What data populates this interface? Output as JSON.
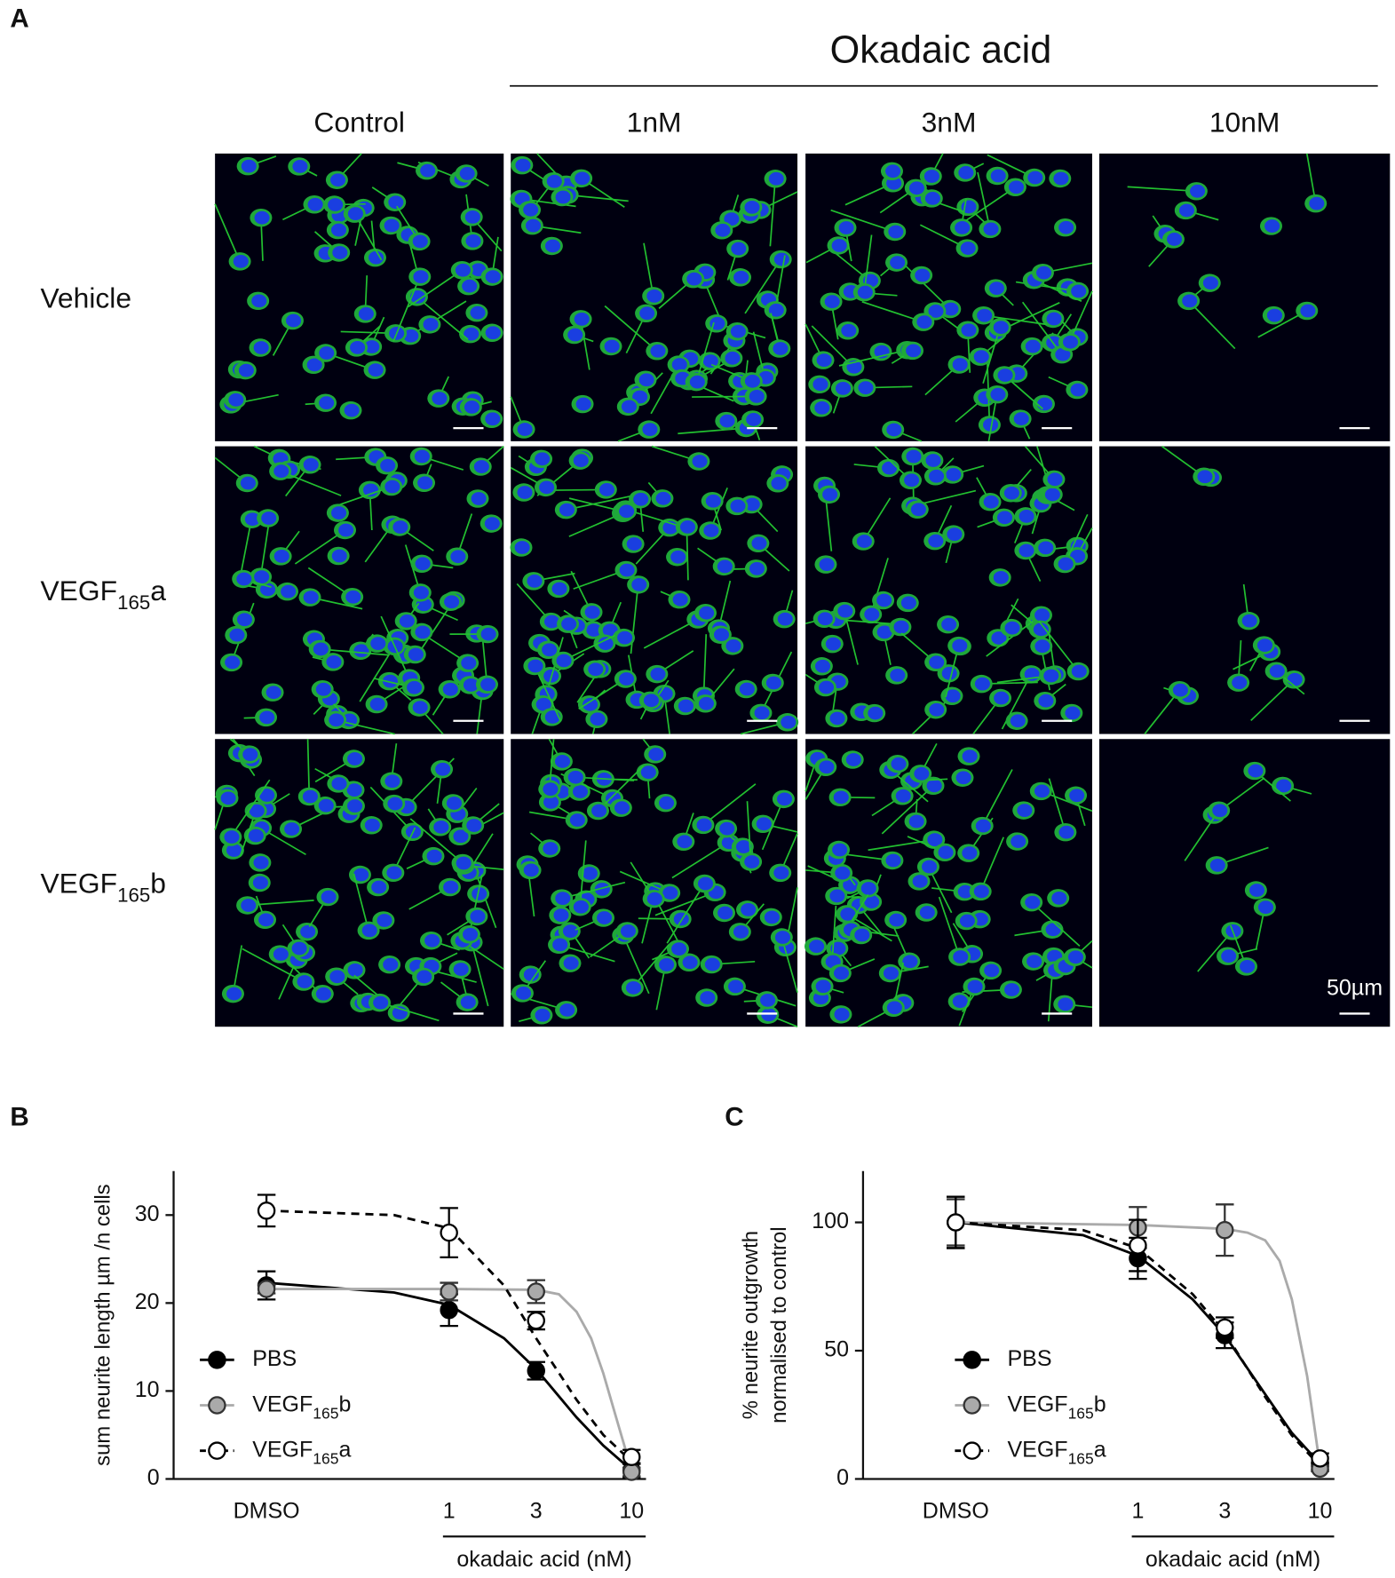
{
  "panel_a": {
    "letter": "A",
    "group_label": "Okadaic acid",
    "columns": [
      "Control",
      "1nM",
      "3nM",
      "10nM"
    ],
    "rows": [
      "Vehicle",
      "VEGF165a",
      "VEGF165b"
    ],
    "scale_label": "50µm"
  },
  "chart_data": [
    {
      "type": "line",
      "letter": "B",
      "y_label": "sum neurite length µm /n cells",
      "x_group_label": "okadaic acid (nM)",
      "x_scale": "log",
      "xlim": [
        0.031,
        12
      ],
      "xticks": [
        {
          "value": 0.1,
          "label": "DMSO"
        },
        1,
        3,
        10
      ],
      "ylim": [
        0,
        35
      ],
      "yticks": [
        0,
        10,
        20,
        30
      ],
      "legend": "lower left",
      "series": [
        {
          "name": "PBS",
          "color": "#000000",
          "marker_fill": "#000000",
          "dashed": false,
          "x": [
            0.1,
            1,
            3,
            10
          ],
          "values": [
            22,
            19.2,
            12.3,
            1.0
          ],
          "errors": [
            1.6,
            1.8,
            1.0,
            0.8
          ],
          "fit": {
            "x": [
              0.1,
              0.5,
              1,
              2,
              3,
              5,
              7,
              10
            ],
            "y": [
              22.3,
              21.2,
              19.8,
              16,
              12.5,
              7,
              3.8,
              1
            ]
          }
        },
        {
          "name": "VEGF165b",
          "color": "#aaaaaa",
          "marker_fill": "#aaaaaa",
          "dashed": false,
          "x": [
            0.1,
            1,
            3,
            10
          ],
          "values": [
            21.6,
            21.3,
            21.3,
            0.8
          ],
          "errors": [
            0.5,
            1.0,
            1.3,
            0.5
          ],
          "fit": {
            "x": [
              0.1,
              1,
              3,
              4,
              5,
              6,
              7,
              8.5,
              10
            ],
            "y": [
              21.6,
              21.6,
              21.5,
              21,
              19,
              16,
              12,
              6,
              1
            ]
          }
        },
        {
          "name": "VEGF165a",
          "color": "#000000",
          "marker_fill": "#ffffff",
          "dashed": true,
          "x": [
            0.1,
            1,
            3,
            10
          ],
          "values": [
            30.5,
            28,
            18,
            2.5
          ],
          "errors": [
            1.8,
            2.8,
            1.0,
            0.8
          ],
          "fit": {
            "x": [
              0.1,
              0.5,
              1,
              2,
              3,
              5,
              7,
              10
            ],
            "y": [
              30.5,
              30,
              28.5,
              22,
              16,
              9,
              5,
              2
            ]
          }
        }
      ]
    },
    {
      "type": "line",
      "letter": "C",
      "y_label": [
        "% neurite outgrowth",
        "normalised to control"
      ],
      "x_group_label": "okadaic acid (nM)",
      "x_scale": "log",
      "xlim": [
        0.031,
        12
      ],
      "xticks": [
        {
          "value": 0.1,
          "label": "DMSO"
        },
        1,
        3,
        10
      ],
      "ylim": [
        0,
        120
      ],
      "yticks": [
        0,
        50,
        100
      ],
      "legend": "lower left",
      "series": [
        {
          "name": "PBS",
          "color": "#000000",
          "marker_fill": "#000000",
          "dashed": false,
          "x": [
            0.1,
            1,
            3,
            10
          ],
          "values": [
            100,
            86,
            56,
            5
          ],
          "errors": [
            10,
            8,
            5,
            1.5
          ],
          "fit": {
            "x": [
              0.1,
              0.5,
              1,
              2,
              3,
              5,
              7,
              10
            ],
            "y": [
              100,
              95,
              87,
              70,
              56,
              33,
              18,
              6
            ]
          }
        },
        {
          "name": "VEGF165b",
          "color": "#aaaaaa",
          "marker_fill": "#aaaaaa",
          "dashed": false,
          "x": [
            0.1,
            1,
            3,
            10
          ],
          "values": [
            100,
            98,
            97,
            4
          ],
          "errors": [
            9,
            8,
            10,
            1
          ],
          "fit": {
            "x": [
              0.1,
              1,
              3,
              4,
              5,
              6,
              7,
              8.5,
              10
            ],
            "y": [
              100,
              99,
              97.5,
              96,
              93,
              85,
              70,
              40,
              5
            ]
          }
        },
        {
          "name": "VEGF165a",
          "color": "#000000",
          "marker_fill": "#ffffff",
          "dashed": true,
          "x": [
            0.1,
            1,
            3,
            10
          ],
          "values": [
            100,
            91,
            59,
            8
          ],
          "errors": [
            10,
            10,
            4,
            2
          ],
          "fit": {
            "x": [
              0.1,
              0.5,
              1,
              2,
              3,
              5,
              7,
              10
            ],
            "y": [
              100,
              97,
              90,
              72,
              57,
              32,
              17,
              5
            ]
          }
        }
      ]
    }
  ]
}
